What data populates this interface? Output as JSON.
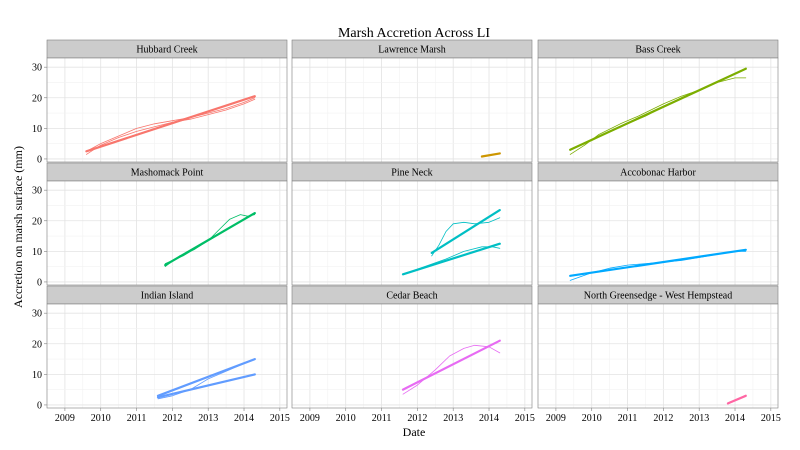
{
  "chart_data": {
    "type": "line",
    "title": "Marsh Accretion Across LI",
    "xlabel": "Date",
    "ylabel": "Accretion on marsh surface (mm)",
    "xlim": [
      2008.5,
      2015.2
    ],
    "ylim": [
      -1,
      33
    ],
    "x_ticks": [
      "2009",
      "2010",
      "2011",
      "2012",
      "2013",
      "2014",
      "2015"
    ],
    "y_ticks": [
      "0",
      "10",
      "20",
      "30"
    ],
    "grid": true,
    "legend": "none",
    "panels": [
      {
        "name": "Hubbard Creek",
        "color": "#F8766D",
        "series": [
          {
            "kind": "trend",
            "x": [
              2009.6,
              2014.3
            ],
            "y": [
              2.5,
              20.5
            ]
          },
          {
            "kind": "smooth",
            "x": [
              2009.6,
              2010.0,
              2010.5,
              2011.0,
              2011.5,
              2012.0,
              2012.5,
              2013.0,
              2013.5,
              2014.0,
              2014.3
            ],
            "y": [
              1.5,
              4.5,
              7.0,
              9.0,
              10.5,
              12.0,
              13.0,
              14.5,
              16.0,
              18.0,
              19.5
            ]
          },
          {
            "kind": "smooth",
            "x": [
              2009.6,
              2010.0,
              2010.5,
              2011.0,
              2011.5,
              2012.0,
              2012.5,
              2013.0,
              2013.5,
              2014.0,
              2014.3
            ],
            "y": [
              2.5,
              5.0,
              7.5,
              10.0,
              11.5,
              12.5,
              13.5,
              15.0,
              16.5,
              18.5,
              20.0
            ]
          }
        ]
      },
      {
        "name": "Lawrence Marsh",
        "color": "#CD9600",
        "series": [
          {
            "kind": "trend",
            "x": [
              2013.8,
              2014.3
            ],
            "y": [
              0.8,
              1.8
            ]
          },
          {
            "kind": "smooth",
            "x": [
              2013.8,
              2014.0,
              2014.3
            ],
            "y": [
              0.7,
              1.3,
              1.9
            ]
          }
        ]
      },
      {
        "name": "Bass Creek",
        "color": "#7CAE00",
        "series": [
          {
            "kind": "trend",
            "x": [
              2009.4,
              2014.3
            ],
            "y": [
              3.0,
              29.5
            ]
          },
          {
            "kind": "smooth",
            "x": [
              2009.4,
              2009.8,
              2010.2,
              2010.8,
              2011.3,
              2012.0,
              2012.5,
              2013.0,
              2013.5,
              2014.0,
              2014.3
            ],
            "y": [
              1.5,
              4.5,
              8.0,
              11.5,
              14.0,
              18.0,
              20.5,
              22.5,
              25.0,
              26.5,
              26.5
            ]
          },
          {
            "kind": "smooth",
            "x": [
              2009.4,
              2010.0,
              2010.5,
              2011.0,
              2011.5,
              2012.0,
              2012.5,
              2013.0,
              2013.5,
              2014.0,
              2014.3
            ],
            "y": [
              3.0,
              6.0,
              9.0,
              11.5,
              14.0,
              17.0,
              20.0,
              22.5,
              25.0,
              28.0,
              29.5
            ]
          }
        ]
      },
      {
        "name": "Mashomack Point",
        "color": "#00BE67",
        "series": [
          {
            "kind": "trend",
            "x": [
              2011.8,
              2014.3
            ],
            "y": [
              5.5,
              22.5
            ]
          },
          {
            "kind": "smooth",
            "x": [
              2011.8,
              2012.2,
              2012.6,
              2013.0,
              2013.3,
              2013.6,
              2013.9,
              2014.1,
              2014.3
            ],
            "y": [
              5.0,
              8.5,
              10.5,
              13.5,
              17.0,
              20.5,
              22.0,
              21.5,
              22.0
            ]
          },
          {
            "kind": "smooth",
            "x": [
              2011.8,
              2012.3,
              2012.8,
              2013.3,
              2013.8,
              2014.3
            ],
            "y": [
              6.0,
              8.5,
              12.0,
              15.5,
              19.0,
              22.5
            ]
          }
        ]
      },
      {
        "name": "Pine Neck",
        "color": "#00BFC4",
        "series": [
          {
            "kind": "trend",
            "x": [
              2012.4,
              2014.3
            ],
            "y": [
              9.5,
              23.5
            ]
          },
          {
            "kind": "smooth",
            "x": [
              2012.4,
              2012.6,
              2012.8,
              2013.0,
              2013.3,
              2013.6,
              2014.0,
              2014.3
            ],
            "y": [
              8.5,
              12.0,
              16.5,
              19.0,
              19.5,
              19.0,
              19.5,
              21.0
            ]
          },
          {
            "kind": "trend",
            "x": [
              2011.6,
              2014.3
            ],
            "y": [
              2.5,
              12.5
            ]
          },
          {
            "kind": "smooth",
            "x": [
              2011.6,
              2012.2,
              2012.8,
              2013.3,
              2013.8,
              2014.1,
              2014.3
            ],
            "y": [
              2.5,
              5.0,
              7.5,
              10.0,
              11.5,
              11.5,
              11.0
            ]
          }
        ]
      },
      {
        "name": "Accobonac Harbor",
        "color": "#00A9FF",
        "series": [
          {
            "kind": "trend",
            "x": [
              2009.4,
              2014.3
            ],
            "y": [
              2.0,
              10.5
            ]
          },
          {
            "kind": "smooth",
            "x": [
              2009.4,
              2010.0,
              2010.5,
              2011.0,
              2011.5,
              2012.0,
              2012.5,
              2013.0,
              2013.5,
              2014.0,
              2014.3
            ],
            "y": [
              0.5,
              3.0,
              4.5,
              5.5,
              6.0,
              6.5,
              7.0,
              8.0,
              9.0,
              10.0,
              10.0
            ]
          }
        ]
      },
      {
        "name": "Indian Island",
        "color": "#619CFF",
        "series": [
          {
            "kind": "trend",
            "x": [
              2011.6,
              2014.3
            ],
            "y": [
              3.0,
              15.0
            ]
          },
          {
            "kind": "trend",
            "x": [
              2011.6,
              2014.3
            ],
            "y": [
              2.5,
              10.0
            ]
          },
          {
            "kind": "smooth",
            "x": [
              2011.6,
              2012.0,
              2012.5,
              2013.0,
              2013.5,
              2014.0,
              2014.3
            ],
            "y": [
              2.0,
              3.0,
              5.0,
              8.5,
              11.0,
              13.5,
              15.0
            ]
          }
        ]
      },
      {
        "name": "Cedar Beach",
        "color": "#E76BF3",
        "series": [
          {
            "kind": "trend",
            "x": [
              2011.6,
              2014.3
            ],
            "y": [
              5.0,
              21.0
            ]
          },
          {
            "kind": "smooth",
            "x": [
              2011.6,
              2012.0,
              2012.5,
              2012.9,
              2013.3,
              2013.6,
              2014.0,
              2014.3
            ],
            "y": [
              3.5,
              6.5,
              11.5,
              16.0,
              18.5,
              19.5,
              19.0,
              17.0
            ]
          }
        ]
      },
      {
        "name": "North Greensedge - West Hempstead",
        "color": "#FF67A4",
        "series": [
          {
            "kind": "trend",
            "x": [
              2013.8,
              2014.3
            ],
            "y": [
              0.5,
              3.0
            ]
          },
          {
            "kind": "smooth",
            "x": [
              2013.8,
              2014.0,
              2014.3
            ],
            "y": [
              0.3,
              1.5,
              3.2
            ]
          }
        ]
      }
    ]
  }
}
